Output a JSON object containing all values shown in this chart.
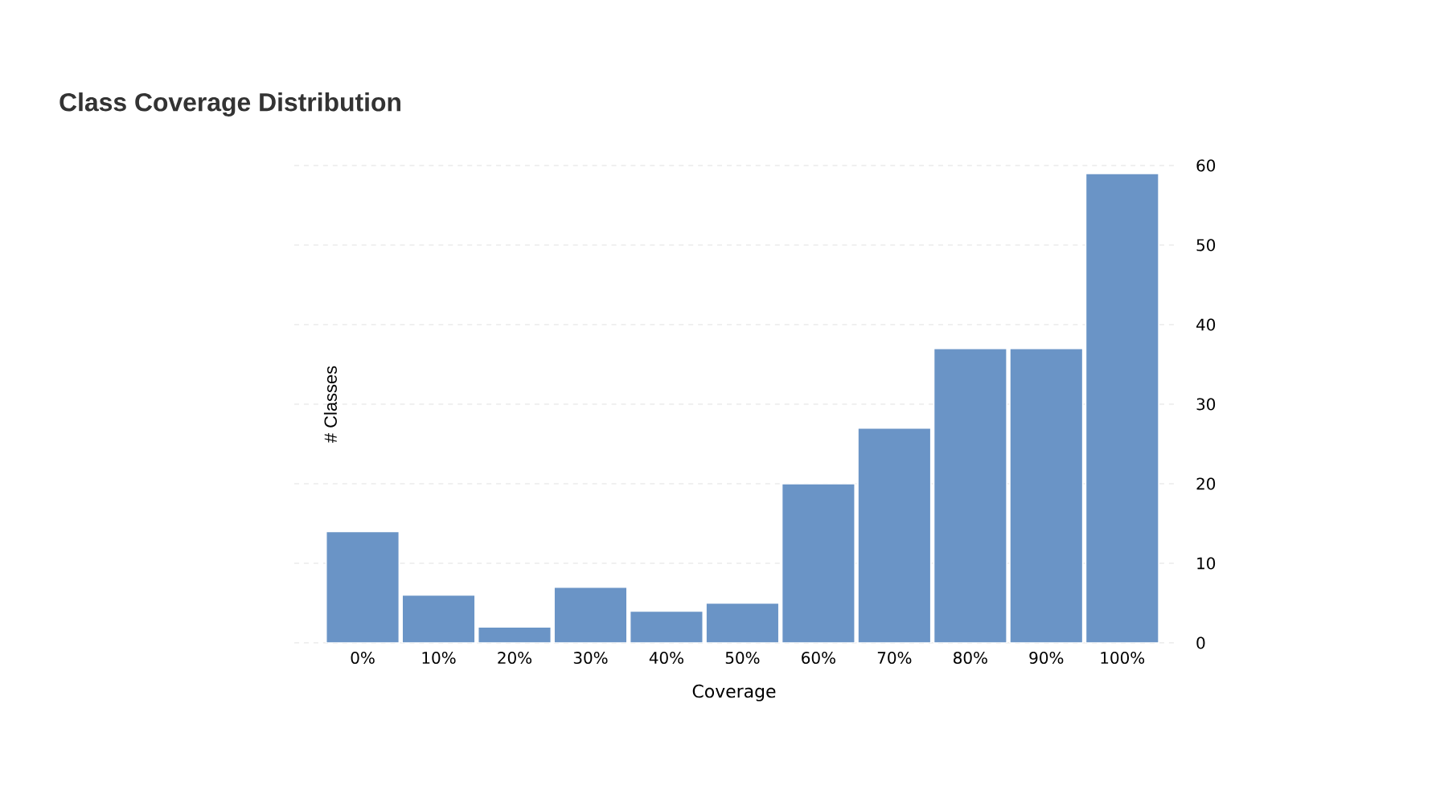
{
  "chart_data": {
    "type": "bar",
    "title": "Class Coverage Distribution",
    "xlabel": "Coverage",
    "ylabel": "# Classes",
    "categories": [
      "0%",
      "10%",
      "20%",
      "30%",
      "40%",
      "50%",
      "60%",
      "70%",
      "80%",
      "90%",
      "100%"
    ],
    "values": [
      14,
      6,
      2,
      7,
      4,
      5,
      20,
      27,
      37,
      37,
      59
    ],
    "color": "#6a94c6",
    "ylim": [
      0,
      60
    ],
    "yticks": [
      0,
      10,
      20,
      30,
      40,
      50,
      60
    ],
    "grid": "y"
  }
}
